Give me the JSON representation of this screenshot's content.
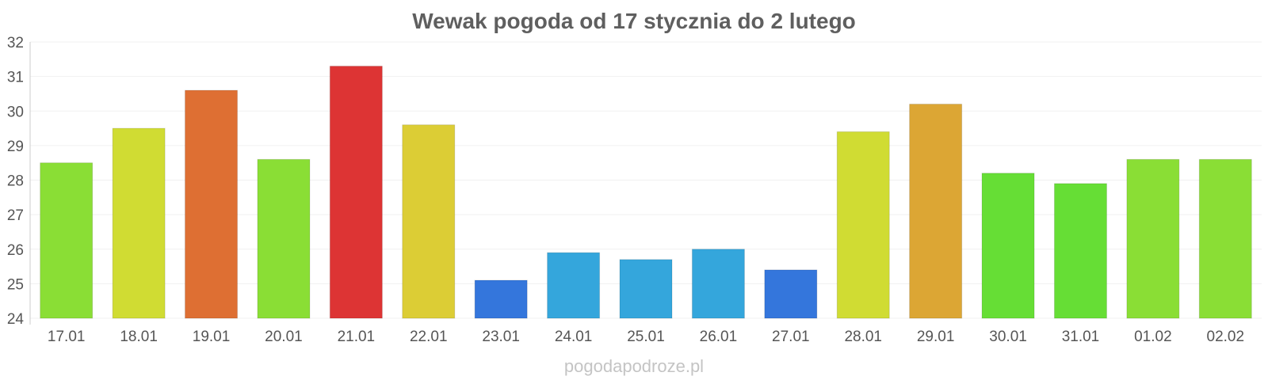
{
  "chart_data": {
    "type": "bar",
    "title": "Wewak pogoda od 17 stycznia do 2 lutego",
    "xlabel": "",
    "ylabel": "",
    "ylim": [
      24,
      32
    ],
    "yticks": [
      24,
      25,
      26,
      27,
      28,
      29,
      30,
      31,
      32
    ],
    "grid": true,
    "categories": [
      "17.01",
      "18.01",
      "19.01",
      "20.01",
      "21.01",
      "22.01",
      "23.01",
      "24.01",
      "25.01",
      "26.01",
      "27.01",
      "28.01",
      "29.01",
      "30.01",
      "31.01",
      "01.02",
      "02.02"
    ],
    "values": [
      28.5,
      29.5,
      30.6,
      28.6,
      31.3,
      29.6,
      25.1,
      25.9,
      25.7,
      26.0,
      25.4,
      29.4,
      30.2,
      28.2,
      27.9,
      28.6,
      28.6
    ],
    "colors": [
      "#8ade35",
      "#d0dc33",
      "#de6f33",
      "#8ade35",
      "#dd3434",
      "#dccd35",
      "#3476dc",
      "#34a6dc",
      "#34a6dc",
      "#34a6dc",
      "#3476dc",
      "#d0dc33",
      "#dca634",
      "#66de35",
      "#66de35",
      "#8ade35",
      "#8ade35"
    ]
  },
  "watermark": "pogodapodroze.pl"
}
